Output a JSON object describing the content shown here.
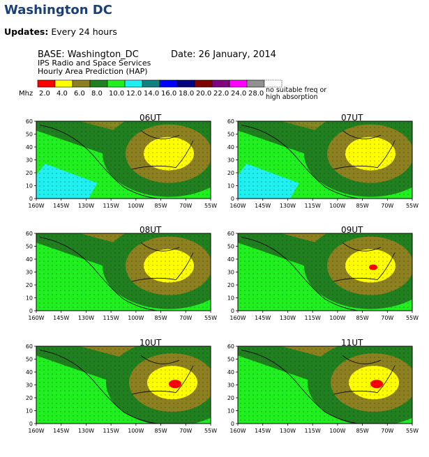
{
  "page": {
    "title": "Washington DC",
    "updates_label": "Updates:",
    "updates_value": "Every 24 hours"
  },
  "header": {
    "base_line": "BASE: Washington_DC",
    "date_line": "Date:  26 January, 2014",
    "org_line": "IPS Radio and Space Services",
    "product_line": "Hourly Area Prediction (HAP)"
  },
  "legend": {
    "unit": "Mhz",
    "bins": [
      {
        "label": "2.0",
        "color": "#ff0000"
      },
      {
        "label": "4.0",
        "color": "#ffff00"
      },
      {
        "label": "6.0",
        "color": "#8c8020"
      },
      {
        "label": "8.0",
        "color": "#208020"
      },
      {
        "label": "10.0",
        "color": "#20f020"
      },
      {
        "label": "12.0",
        "color": "#20f0f0"
      },
      {
        "label": "14.0",
        "color": "#108080"
      },
      {
        "label": "16.0",
        "color": "#0000ff"
      },
      {
        "label": "18.0",
        "color": "#000080"
      },
      {
        "label": "20.0",
        "color": "#800000"
      },
      {
        "label": "22.0",
        "color": "#800080"
      },
      {
        "label": "24.0",
        "color": "#ff00ff"
      },
      {
        "label": "28.0",
        "color": "#909090"
      }
    ],
    "no_freq_line1": "no suitable freq or",
    "no_freq_line2": "high absorption"
  },
  "axes": {
    "x_ticks": [
      "160W",
      "145W",
      "130W",
      "115W",
      "100W",
      "85W",
      "70W",
      "55W"
    ],
    "y_ticks": [
      "0",
      "10",
      "20",
      "30",
      "40",
      "50",
      "60"
    ]
  },
  "panels": [
    {
      "label": "06UT",
      "red_core": false,
      "cyan_patch": true
    },
    {
      "label": "07UT",
      "red_core": false,
      "cyan_patch": true
    },
    {
      "label": "08UT",
      "red_core": false,
      "cyan_patch": false
    },
    {
      "label": "09UT",
      "red_core": true,
      "cyan_patch": false
    },
    {
      "label": "10UT",
      "red_core": true,
      "cyan_patch": false
    },
    {
      "label": "11UT",
      "red_core": true,
      "cyan_patch": false
    }
  ]
}
